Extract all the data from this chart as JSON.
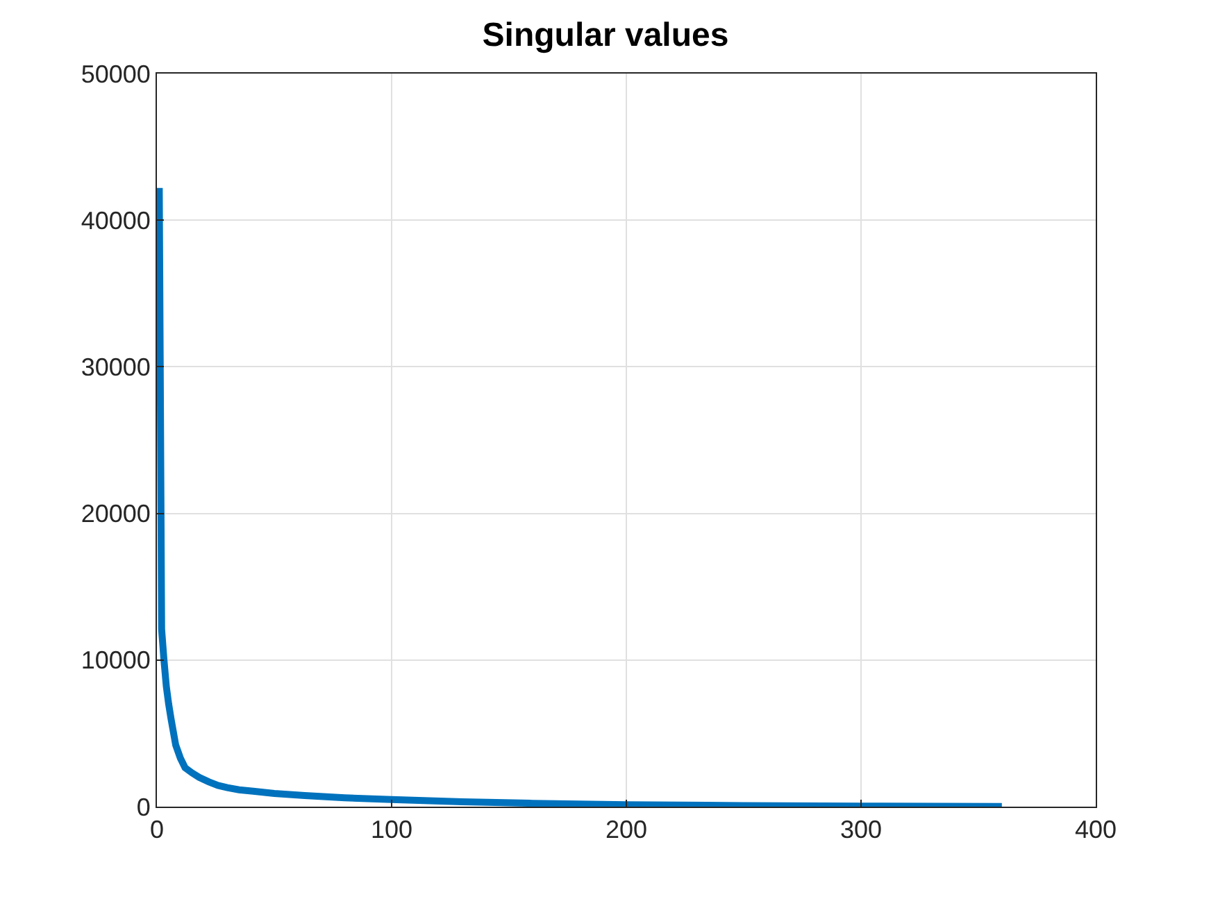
{
  "chart_data": {
    "type": "line",
    "title": "Singular values",
    "x": [
      1,
      2,
      3,
      4,
      5,
      6,
      8,
      10,
      12,
      15,
      18,
      22,
      26,
      30,
      35,
      41,
      50,
      63,
      80,
      100,
      130,
      160,
      200,
      250,
      300,
      360
    ],
    "series": [
      {
        "color": "#0072bd",
        "values": [
          42200,
          12100,
          10000,
          8200,
          7000,
          6000,
          4200,
          3300,
          2650,
          2300,
          2000,
          1700,
          1450,
          1300,
          1150,
          1050,
          900,
          760,
          600,
          480,
          330,
          230,
          130,
          70,
          35,
          10
        ]
      }
    ],
    "xlim": [
      0,
      400
    ],
    "ylim": [
      0,
      50000
    ],
    "xticks": [
      0,
      100,
      200,
      300,
      400
    ],
    "yticks": [
      0,
      10000,
      20000,
      30000,
      40000,
      50000
    ],
    "grid": true,
    "legend": false,
    "marker": "none",
    "line_style": "solid"
  }
}
